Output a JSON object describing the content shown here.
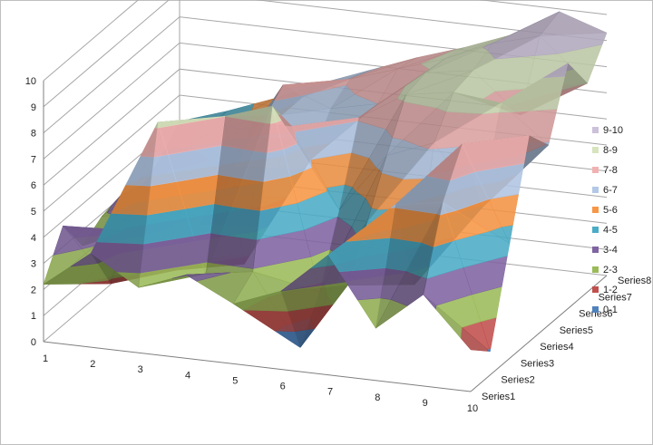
{
  "chart_data": {
    "type": "surface",
    "x": [
      1,
      2,
      3,
      4,
      5,
      6,
      7,
      8,
      9,
      10
    ],
    "series": [
      {
        "name": "Series1",
        "values": [
          2.2,
          3.6,
          2.5,
          3.2,
          2.3,
          3.0,
          4.6,
          2.0,
          3.5,
          1.6
        ]
      },
      {
        "name": "Series2",
        "values": [
          3.8,
          1.8,
          8.2,
          2.6,
          2.9,
          0.2,
          2.8,
          6.1,
          6.4,
          0.9
        ]
      },
      {
        "name": "Series3",
        "values": [
          2.4,
          3.2,
          1.9,
          8.0,
          8.6,
          1.7,
          4.6,
          2.4,
          8.0,
          4.4
        ]
      },
      {
        "name": "Series4",
        "values": [
          2.9,
          3.3,
          2.8,
          1.7,
          7.2,
          4.2,
          6.5,
          7.2,
          4.9,
          7.9
        ]
      },
      {
        "name": "Series5",
        "values": [
          3.1,
          4.2,
          3.2,
          6.7,
          5.3,
          7.1,
          8.2,
          8.5,
          8.3,
          6.9
        ]
      },
      {
        "name": "Series6",
        "values": [
          2.7,
          3.6,
          4.4,
          7.3,
          6.6,
          7.0,
          8.4,
          8.7,
          7.2,
          9.4
        ]
      },
      {
        "name": "Series7",
        "values": [
          3.2,
          4.4,
          5.1,
          6.2,
          7.1,
          7.7,
          8.3,
          9.1,
          9.6,
          8.0
        ]
      },
      {
        "name": "Series8",
        "values": [
          4.0,
          4.6,
          5.3,
          6.1,
          6.8,
          7.5,
          8.1,
          8.8,
          9.9,
          9.3
        ]
      }
    ],
    "zlim": [
      0,
      10
    ],
    "z_ticks": [
      "0",
      "1",
      "2",
      "3",
      "4",
      "5",
      "6",
      "7",
      "8",
      "9",
      "10"
    ],
    "x_ticks": [
      "1",
      "2",
      "3",
      "4",
      "5",
      "6",
      "7",
      "8",
      "9",
      "10"
    ],
    "legend": {
      "placement": "right",
      "entries": [
        {
          "label": "9-10",
          "color": "#ccc1da"
        },
        {
          "label": "8-9",
          "color": "#d7e4bd"
        },
        {
          "label": "7-8",
          "color": "#f2b1b1"
        },
        {
          "label": "6-7",
          "color": "#b3c8e6"
        },
        {
          "label": "5-6",
          "color": "#f79646"
        },
        {
          "label": "4-5",
          "color": "#4bacc6"
        },
        {
          "label": "3-4",
          "color": "#8064a2"
        },
        {
          "label": "2-3",
          "color": "#9bbb59"
        },
        {
          "label": "1-2",
          "color": "#c0504d"
        },
        {
          "label": "0-1",
          "color": "#4f81bd"
        }
      ]
    },
    "grid": true
  }
}
